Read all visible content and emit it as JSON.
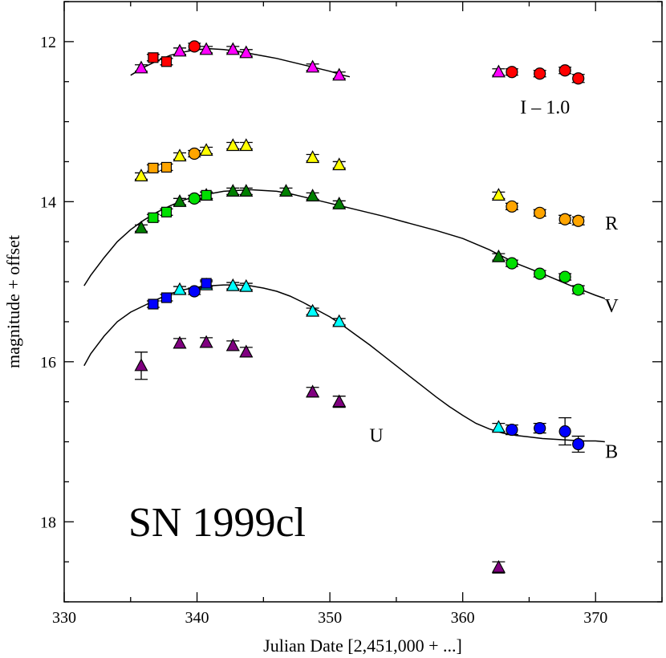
{
  "chart_data": {
    "type": "scatter",
    "title": "SN 1999cl",
    "xlabel": "Julian Date [2,451,000 + ...]",
    "ylabel": "magnitude + offset",
    "xlim": [
      330,
      375
    ],
    "ylim": [
      19.0,
      11.5
    ],
    "y_inverted": true,
    "x_ticks": [
      330,
      340,
      350,
      360,
      370
    ],
    "y_ticks": [
      12,
      14,
      16,
      18
    ],
    "x_tick_labels": [
      "330",
      "340",
      "350",
      "360",
      "370"
    ],
    "y_tick_labels": [
      "12",
      "14",
      "16",
      "18"
    ],
    "band_labels": [
      {
        "text": "I – 1.0",
        "x": 366.2,
        "y": 12.9
      },
      {
        "text": "R",
        "x": 371.2,
        "y": 14.35
      },
      {
        "text": "V",
        "x": 371.2,
        "y": 15.38
      },
      {
        "text": "B",
        "x": 371.2,
        "y": 17.2
      },
      {
        "text": "U",
        "x": 353.5,
        "y": 17.0
      }
    ],
    "colors": {
      "I": "#ff0000",
      "R": "#ffa500",
      "V": "#00e000",
      "B": "#0000ff",
      "U": "#9400d3",
      "I_tri": "#ff00ff",
      "R_tri": "#ffff00",
      "V_tri": "#008000",
      "B_tri": "#00ffff",
      "U_tri": "#800080",
      "I_sq": "#ff0000",
      "R_sq": "#ffa500",
      "V_sq": "#00e000",
      "B_sq": "#0000ff"
    },
    "series": [
      {
        "name": "I-1.0 ▲",
        "marker": "triangle",
        "color_key": "I_tri",
        "points": [
          [
            335.8,
            12.33,
            0.04
          ],
          [
            338.7,
            12.12,
            0.03
          ],
          [
            340.7,
            12.1,
            0.03
          ],
          [
            342.7,
            12.1,
            0.03
          ],
          [
            343.7,
            12.14,
            0.03
          ],
          [
            348.7,
            12.32,
            0.04
          ],
          [
            350.7,
            12.42,
            0.04
          ],
          [
            362.7,
            12.38,
            0.03
          ]
        ]
      },
      {
        "name": "I-1.0 ■",
        "marker": "square",
        "color_key": "I_sq",
        "points": [
          [
            336.7,
            12.2,
            0.04
          ],
          [
            337.7,
            12.25,
            0.04
          ]
        ]
      },
      {
        "name": "I-1.0 ●",
        "marker": "circle",
        "color_key": "I",
        "points": [
          [
            339.8,
            12.06,
            0.03
          ],
          [
            363.7,
            12.38,
            0.04
          ],
          [
            365.8,
            12.4,
            0.04
          ],
          [
            367.7,
            12.36,
            0.04
          ],
          [
            368.7,
            12.46,
            0.05
          ]
        ]
      },
      {
        "name": "R ▲",
        "marker": "triangle",
        "color_key": "R_tri",
        "points": [
          [
            335.8,
            13.68,
            0.04
          ],
          [
            338.7,
            13.43,
            0.03
          ],
          [
            340.7,
            13.36,
            0.03
          ],
          [
            342.7,
            13.3,
            0.03
          ],
          [
            343.7,
            13.3,
            0.03
          ],
          [
            348.7,
            13.45,
            0.04
          ],
          [
            350.7,
            13.54,
            0.04
          ],
          [
            362.7,
            13.92,
            0.04
          ]
        ]
      },
      {
        "name": "R ■",
        "marker": "square",
        "color_key": "R_sq",
        "points": [
          [
            336.7,
            13.58,
            0.04
          ],
          [
            337.7,
            13.57,
            0.04
          ]
        ]
      },
      {
        "name": "R ●",
        "marker": "circle",
        "color_key": "R",
        "points": [
          [
            339.8,
            13.4,
            0.03
          ],
          [
            363.7,
            14.06,
            0.04
          ],
          [
            365.8,
            14.14,
            0.04
          ],
          [
            367.7,
            14.22,
            0.05
          ],
          [
            368.7,
            14.24,
            0.05
          ]
        ]
      },
      {
        "name": "V ▲",
        "marker": "triangle",
        "color_key": "V_tri",
        "points": [
          [
            335.8,
            14.33,
            0.04
          ],
          [
            338.7,
            14.0,
            0.03
          ],
          [
            340.7,
            13.92,
            0.03
          ],
          [
            342.7,
            13.87,
            0.03
          ],
          [
            343.7,
            13.87,
            0.03
          ],
          [
            346.7,
            13.87,
            0.03
          ],
          [
            348.7,
            13.93,
            0.03
          ],
          [
            350.7,
            14.03,
            0.04
          ],
          [
            362.7,
            14.69,
            0.04
          ]
        ]
      },
      {
        "name": "V ■",
        "marker": "square",
        "color_key": "V_sq",
        "points": [
          [
            336.7,
            14.2,
            0.04
          ],
          [
            337.7,
            14.13,
            0.04
          ],
          [
            340.7,
            13.92,
            0.04
          ]
        ]
      },
      {
        "name": "V ●",
        "marker": "circle",
        "color_key": "V",
        "points": [
          [
            339.8,
            13.96,
            0.03
          ],
          [
            363.7,
            14.77,
            0.04
          ],
          [
            365.8,
            14.9,
            0.04
          ],
          [
            367.7,
            14.94,
            0.04
          ],
          [
            368.7,
            15.1,
            0.05
          ]
        ]
      },
      {
        "name": "B ▲",
        "marker": "triangle",
        "color_key": "B_tri",
        "points": [
          [
            338.7,
            15.1,
            0.04
          ],
          [
            340.7,
            15.04,
            0.03
          ],
          [
            342.7,
            15.05,
            0.03
          ],
          [
            343.7,
            15.06,
            0.03
          ],
          [
            348.7,
            15.37,
            0.04
          ],
          [
            350.7,
            15.5,
            0.04
          ],
          [
            362.7,
            16.82,
            0.05
          ]
        ]
      },
      {
        "name": "B ■",
        "marker": "square",
        "color_key": "B_sq",
        "points": [
          [
            336.7,
            15.28,
            0.04
          ],
          [
            337.7,
            15.2,
            0.04
          ],
          [
            340.7,
            15.02,
            0.04
          ]
        ]
      },
      {
        "name": "B ●",
        "marker": "circle",
        "color_key": "B",
        "points": [
          [
            339.8,
            15.12,
            0.04
          ],
          [
            363.7,
            16.85,
            0.06
          ],
          [
            365.8,
            16.83,
            0.06
          ],
          [
            367.7,
            16.87,
            0.17
          ],
          [
            368.7,
            17.03,
            0.1
          ]
        ]
      },
      {
        "name": "U ▲",
        "marker": "triangle",
        "color_key": "U_tri",
        "points": [
          [
            335.8,
            16.05,
            0.17
          ],
          [
            338.7,
            15.77,
            0.06
          ],
          [
            340.7,
            15.76,
            0.06
          ],
          [
            342.7,
            15.8,
            0.06
          ],
          [
            343.7,
            15.88,
            0.06
          ],
          [
            348.7,
            16.38,
            0.06
          ],
          [
            350.7,
            16.5,
            0.07
          ],
          [
            362.7,
            18.57,
            0.07
          ]
        ]
      }
    ],
    "fit_curves": [
      {
        "name": "I fit",
        "points": [
          [
            335,
            12.42
          ],
          [
            336,
            12.32
          ],
          [
            337,
            12.24
          ],
          [
            338,
            12.17
          ],
          [
            339,
            12.13
          ],
          [
            340,
            12.1
          ],
          [
            341,
            12.09
          ],
          [
            342,
            12.1
          ],
          [
            343,
            12.12
          ],
          [
            344,
            12.15
          ],
          [
            345,
            12.18
          ],
          [
            346,
            12.21
          ],
          [
            347,
            12.25
          ],
          [
            348,
            12.29
          ],
          [
            349,
            12.33
          ],
          [
            350,
            12.37
          ],
          [
            351,
            12.42
          ],
          [
            351.5,
            12.44
          ]
        ]
      },
      {
        "name": "V fit",
        "points": [
          [
            331.5,
            15.05
          ],
          [
            332,
            14.92
          ],
          [
            333,
            14.7
          ],
          [
            334,
            14.5
          ],
          [
            335,
            14.35
          ],
          [
            336,
            14.23
          ],
          [
            337,
            14.13
          ],
          [
            338,
            14.05
          ],
          [
            339,
            13.98
          ],
          [
            340,
            13.93
          ],
          [
            341,
            13.9
          ],
          [
            342,
            13.87
          ],
          [
            343,
            13.86
          ],
          [
            344,
            13.85
          ],
          [
            345,
            13.86
          ],
          [
            346,
            13.87
          ],
          [
            347,
            13.9
          ],
          [
            348,
            13.94
          ],
          [
            349,
            13.98
          ],
          [
            350,
            14.02
          ],
          [
            352,
            14.1
          ],
          [
            354,
            14.18
          ],
          [
            356,
            14.27
          ],
          [
            358,
            14.36
          ],
          [
            360,
            14.46
          ],
          [
            362,
            14.6
          ],
          [
            364,
            14.77
          ],
          [
            366,
            14.9
          ],
          [
            368,
            15.04
          ],
          [
            370,
            15.17
          ],
          [
            370.7,
            15.21
          ]
        ]
      },
      {
        "name": "B fit",
        "points": [
          [
            331.5,
            16.05
          ],
          [
            332,
            15.9
          ],
          [
            333,
            15.68
          ],
          [
            334,
            15.5
          ],
          [
            335,
            15.38
          ],
          [
            336,
            15.3
          ],
          [
            337,
            15.22
          ],
          [
            338,
            15.15
          ],
          [
            339,
            15.1
          ],
          [
            340,
            15.07
          ],
          [
            341,
            15.05
          ],
          [
            342,
            15.04
          ],
          [
            343,
            15.04
          ],
          [
            344,
            15.05
          ],
          [
            345,
            15.08
          ],
          [
            346,
            15.12
          ],
          [
            347,
            15.18
          ],
          [
            348,
            15.26
          ],
          [
            349,
            15.35
          ],
          [
            350,
            15.44
          ],
          [
            351,
            15.55
          ],
          [
            352,
            15.67
          ],
          [
            353,
            15.79
          ],
          [
            354,
            15.92
          ],
          [
            355,
            16.05
          ],
          [
            356,
            16.18
          ],
          [
            357,
            16.31
          ],
          [
            358,
            16.44
          ],
          [
            359,
            16.56
          ],
          [
            360,
            16.67
          ],
          [
            361,
            16.77
          ],
          [
            362,
            16.84
          ],
          [
            363,
            16.89
          ],
          [
            364,
            16.92
          ],
          [
            365,
            16.94
          ],
          [
            366,
            16.96
          ],
          [
            367,
            16.97
          ],
          [
            368,
            16.98
          ],
          [
            369,
            16.99
          ],
          [
            370,
            16.99
          ],
          [
            370.7,
            17.0
          ]
        ]
      }
    ]
  }
}
